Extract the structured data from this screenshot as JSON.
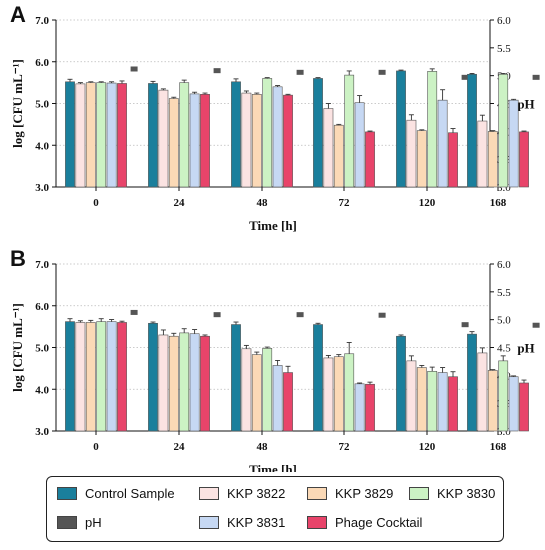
{
  "chart_data": [
    {
      "type": "bar",
      "panel": "A",
      "categories": [
        "0",
        "24",
        "48",
        "72",
        "120",
        "168"
      ],
      "xlabel": "Time [h]",
      "ylabel": "log [CFU mL⁻¹]",
      "ylim": [
        3.0,
        7.0
      ],
      "yticks": [
        "3.0",
        "4.0",
        "5.0",
        "6.0",
        "7.0"
      ],
      "y2label": "pH",
      "y2lim": [
        3.0,
        6.0
      ],
      "y2ticks": [
        "3.0",
        "3.5",
        "4.0",
        "4.5",
        "5.0",
        "5.5",
        "6.0"
      ],
      "series": [
        {
          "name": "Control Sample",
          "color": "#1a7f9c",
          "values": [
            5.52,
            5.48,
            5.52,
            5.6,
            5.78,
            5.7
          ],
          "errors": [
            0.06,
            0.05,
            0.07,
            0.02,
            0.02,
            0.02
          ]
        },
        {
          "name": "KKP 3822",
          "color": "#fbe3e2",
          "values": [
            5.47,
            5.32,
            5.25,
            4.88,
            4.6,
            4.58
          ],
          "errors": [
            0.03,
            0.03,
            0.05,
            0.12,
            0.13,
            0.14
          ]
        },
        {
          "name": "KKP 3829",
          "color": "#fbd9b6",
          "values": [
            5.5,
            5.12,
            5.22,
            4.48,
            4.35,
            4.33
          ],
          "errors": [
            0.02,
            0.03,
            0.03,
            0.02,
            0.02,
            0.02
          ]
        },
        {
          "name": "KKP 3830",
          "color": "#ccf2c4",
          "values": [
            5.5,
            5.5,
            5.6,
            5.68,
            5.77,
            5.7
          ],
          "errors": [
            0.02,
            0.06,
            0.02,
            0.1,
            0.06,
            0.02
          ]
        },
        {
          "name": "KKP 3831",
          "color": "#c6d8f3",
          "values": [
            5.49,
            5.23,
            5.4,
            5.02,
            5.08,
            5.08
          ],
          "errors": [
            0.03,
            0.04,
            0.03,
            0.17,
            0.25,
            0.02
          ]
        },
        {
          "name": "Phage Cocktail",
          "color": "#e8446a",
          "values": [
            5.48,
            5.22,
            5.2,
            4.32,
            4.3,
            4.32
          ],
          "errors": [
            0.06,
            0.03,
            0.02,
            0.02,
            0.1,
            0.02
          ]
        }
      ],
      "ph": {
        "name": "pH",
        "color": "#555555",
        "values": [
          5.12,
          5.09,
          5.06,
          5.06,
          4.97,
          4.97
        ]
      }
    },
    {
      "type": "bar",
      "panel": "B",
      "categories": [
        "0",
        "24",
        "48",
        "72",
        "120",
        "168"
      ],
      "xlabel": "Time [h]",
      "ylabel": "log [CFU mL⁻¹]",
      "ylim": [
        3.0,
        7.0
      ],
      "yticks": [
        "3.0",
        "4.0",
        "5.0",
        "6.0",
        "7.0"
      ],
      "y2label": "pH",
      "y2lim": [
        3.0,
        6.0
      ],
      "y2ticks": [
        "3.0",
        "3.5",
        "4.0",
        "4.5",
        "5.0",
        "5.5",
        "6.0"
      ],
      "series": [
        {
          "name": "Control Sample",
          "color": "#1a7f9c",
          "values": [
            5.62,
            5.58,
            5.55,
            5.55,
            5.27,
            5.32
          ],
          "errors": [
            0.07,
            0.03,
            0.06,
            0.03,
            0.03,
            0.06
          ]
        },
        {
          "name": "KKP 3822",
          "color": "#fbe3e2",
          "values": [
            5.6,
            5.3,
            4.97,
            4.75,
            4.68,
            4.87
          ],
          "errors": [
            0.04,
            0.12,
            0.08,
            0.06,
            0.12,
            0.12
          ]
        },
        {
          "name": "KKP 3829",
          "color": "#fbd9b6",
          "values": [
            5.6,
            5.27,
            4.83,
            4.78,
            4.52,
            4.45
          ],
          "errors": [
            0.05,
            0.07,
            0.06,
            0.05,
            0.05,
            0.02
          ]
        },
        {
          "name": "KKP 3830",
          "color": "#ccf2c4",
          "values": [
            5.62,
            5.35,
            4.98,
            4.85,
            4.43,
            4.68
          ],
          "errors": [
            0.07,
            0.1,
            0.03,
            0.27,
            0.1,
            0.12
          ]
        },
        {
          "name": "KKP 3831",
          "color": "#c6d8f3",
          "values": [
            5.62,
            5.33,
            4.57,
            4.13,
            4.4,
            4.3
          ],
          "errors": [
            0.05,
            0.1,
            0.12,
            0.02,
            0.12,
            0.02
          ]
        },
        {
          "name": "Phage Cocktail",
          "color": "#e8446a",
          "values": [
            5.6,
            5.27,
            4.4,
            4.12,
            4.3,
            4.15
          ],
          "errors": [
            0.03,
            0.03,
            0.15,
            0.05,
            0.12,
            0.07
          ]
        }
      ],
      "ph": {
        "name": "pH",
        "color": "#555555",
        "values": [
          5.13,
          5.09,
          5.09,
          5.08,
          4.91,
          4.9
        ]
      }
    }
  ],
  "legend": [
    {
      "label": "Control Sample",
      "color": "#1a7f9c"
    },
    {
      "label": "KKP 3822",
      "color": "#fbe3e2"
    },
    {
      "label": "KKP 3829",
      "color": "#fbd9b6"
    },
    {
      "label": "KKP 3830",
      "color": "#ccf2c4"
    },
    {
      "label": "pH",
      "color": "#555555"
    },
    {
      "label": "KKP 3831",
      "color": "#c6d8f3"
    },
    {
      "label": "Phage Cocktail",
      "color": "#e8446a"
    }
  ]
}
